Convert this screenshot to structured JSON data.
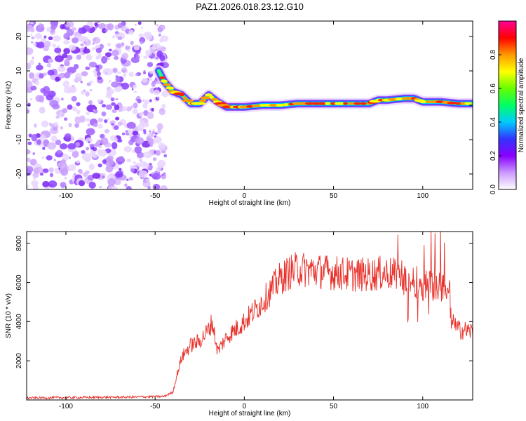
{
  "title": "PAZ1.2026.018.23.12.G10",
  "chart_data": [
    {
      "type": "heatmap",
      "name": "spectrogram",
      "xlabel": "Height of straight line (km)",
      "ylabel": "Frequency (Hz)",
      "xlim": [
        -122,
        128
      ],
      "ylim": [
        -24.5,
        24.5
      ],
      "xticks": [
        -100,
        -50,
        0,
        50,
        100
      ],
      "yticks": [
        -20,
        -10,
        0,
        10,
        20
      ],
      "x_tick_labels": [
        "-100",
        "-50",
        "0",
        "50",
        "100"
      ],
      "y_tick_labels": [
        "-20",
        "-10",
        "0",
        "10",
        "20"
      ],
      "noise_region_x": [
        -122,
        -44
      ],
      "ridge": {
        "x": [
          -48,
          -45,
          -40,
          -35,
          -30,
          -25,
          -20,
          -15,
          -10,
          -5,
          0,
          10,
          20,
          30,
          40,
          50,
          60,
          70,
          75,
          80,
          90,
          95,
          100,
          110,
          120,
          128
        ],
        "freq": [
          10,
          7,
          4,
          3,
          0.5,
          0.5,
          3,
          1,
          -0.5,
          -0.5,
          -0.5,
          0,
          0,
          0.5,
          0.5,
          0.5,
          0.5,
          0.5,
          1.5,
          1.5,
          2,
          2,
          1,
          1,
          0.5,
          0.5
        ]
      },
      "colorbar": {
        "label": "Normalized spectral amplitude",
        "range": [
          0,
          1
        ],
        "ticks": [
          0,
          0.2,
          0.4,
          0.6,
          0.8
        ],
        "tick_labels": [
          "0.0",
          "0.2",
          "0.4",
          "0.6",
          "0.8"
        ],
        "colors": [
          "#ffffff",
          "#cc99ff",
          "#8800ff",
          "#3333ff",
          "#00ccff",
          "#00ff66",
          "#66ff00",
          "#ffff00",
          "#ff9900",
          "#ff0000",
          "#ff0099"
        ]
      }
    },
    {
      "type": "line",
      "name": "snr",
      "xlabel": "Height of straight line (km)",
      "ylabel": "SNR (10 * v/v)",
      "xlim": [
        -122,
        128
      ],
      "ylim": [
        0,
        8600
      ],
      "xticks": [
        -100,
        -50,
        0,
        50,
        100
      ],
      "yticks": [
        2000,
        4000,
        6000,
        8000
      ],
      "x_tick_labels": [
        "-100",
        "-50",
        "0",
        "50",
        "100"
      ],
      "y_tick_labels": [
        "2000",
        "4000",
        "6000",
        "8000"
      ],
      "color": "#e8302a",
      "series": [
        {
          "name": "SNR",
          "x": [
            -122,
            -60,
            -45,
            -40,
            -38,
            -35,
            -30,
            -25,
            -20,
            -18,
            -15,
            -10,
            -5,
            0,
            10,
            20,
            25,
            30,
            40,
            50,
            60,
            70,
            80,
            90,
            100,
            110,
            115,
            116,
            120,
            128
          ],
          "y": [
            100,
            150,
            180,
            400,
            1200,
            2200,
            2800,
            3000,
            3600,
            4000,
            2500,
            3200,
            3600,
            4000,
            5000,
            6200,
            6500,
            6700,
            6600,
            6500,
            6400,
            6400,
            6500,
            6200,
            5900,
            5800,
            5600,
            4000,
            3600,
            3500
          ]
        }
      ]
    }
  ]
}
